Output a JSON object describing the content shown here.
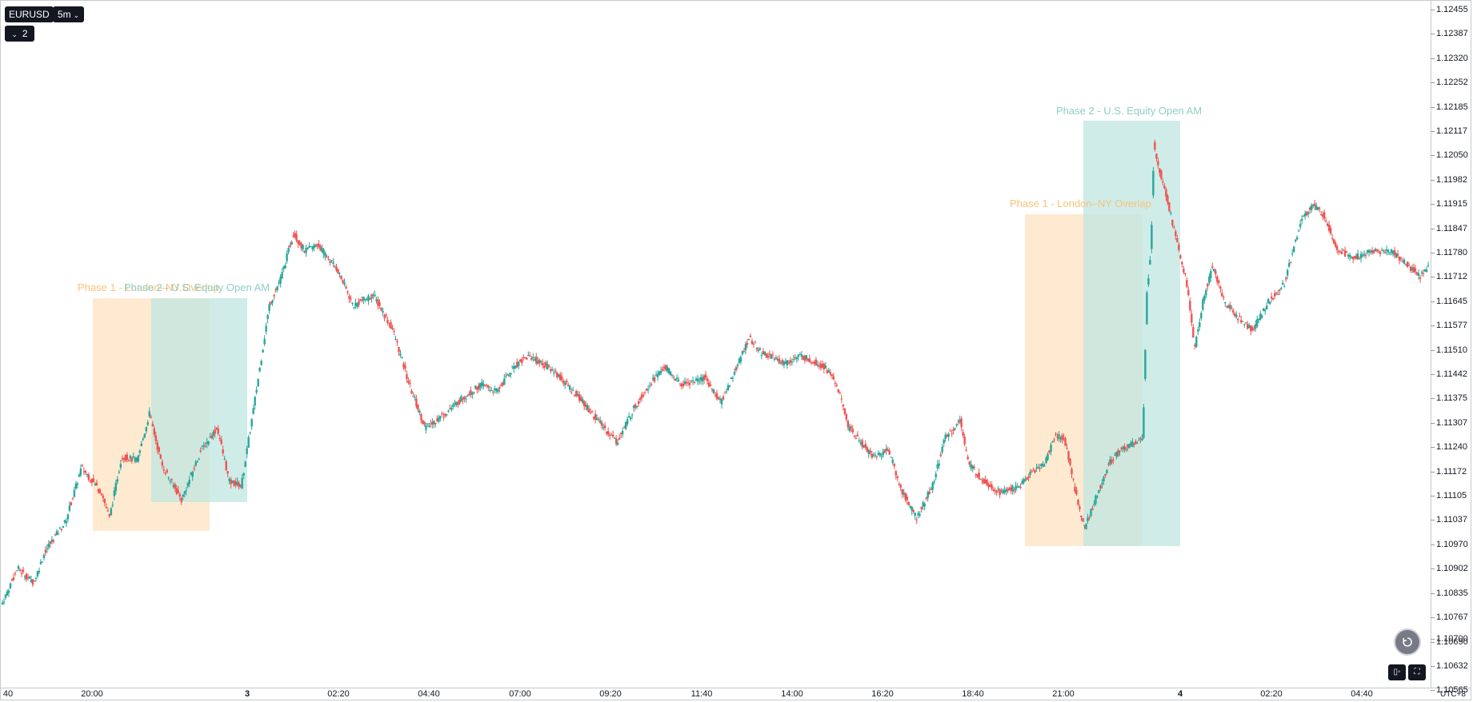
{
  "header": {
    "symbol": "EURUSD",
    "timeframe": "5m",
    "indicator_count": "2"
  },
  "colors": {
    "up": "#26a69a",
    "down": "#ef5350",
    "phase1_fill": "#fde3c1",
    "phase1_text": "#f8c37a",
    "phase2_fill": "#bfe6e0",
    "phase2_text": "#8fcfc6"
  },
  "zones": {
    "z1": "Phase 1 - London–NY Overlap",
    "z2": "Phase 2 - U.S. Equity Open AM",
    "z3": "Phase 1 - London–NY Overlap",
    "z4": "Phase 2 - U.S. Equity Open AM"
  },
  "price_scale": [
    "1.12455",
    "1.12387",
    "1.12320",
    "1.12252",
    "1.12185",
    "1.12117",
    "1.12050",
    "1.11982",
    "1.11915",
    "1.11847",
    "1.11780",
    "1.11712",
    "1.11645",
    "1.11577",
    "1.11510",
    "1.11442",
    "1.11375",
    "1.11307",
    "1.11240",
    "1.11172",
    "1.11105",
    "1.11037",
    "1.10970",
    "1.10902",
    "1.10835",
    "1.10767",
    "1.10700",
    "1.10690",
    "1.10632",
    "1.10565"
  ],
  "time_scale": [
    "40",
    "20:00",
    "3",
    "02:20",
    "04:40",
    "07:00",
    "09:20",
    "11:40",
    "14:00",
    "16:20",
    "18:40",
    "21:00",
    "4",
    "02:20",
    "04:40"
  ],
  "timezone": "UTC+8",
  "chart_data": {
    "type": "candlestick",
    "symbol": "EURUSD",
    "interval": "5m",
    "ylim": [
      1.1056,
      1.1246
    ],
    "anchors": [
      [
        0,
        1.1079
      ],
      [
        20,
        1.1089
      ],
      [
        40,
        1.1085
      ],
      [
        55,
        1.1094
      ],
      [
        80,
        1.1102
      ],
      [
        100,
        1.1117
      ],
      [
        125,
        1.111
      ],
      [
        135,
        1.1103
      ],
      [
        150,
        1.112
      ],
      [
        170,
        1.1119
      ],
      [
        185,
        1.1132
      ],
      [
        200,
        1.1118
      ],
      [
        225,
        1.1108
      ],
      [
        250,
        1.1122
      ],
      [
        270,
        1.1128
      ],
      [
        285,
        1.1113
      ],
      [
        300,
        1.1112
      ],
      [
        315,
        1.1133
      ],
      [
        335,
        1.1162
      ],
      [
        350,
        1.117
      ],
      [
        365,
        1.1182
      ],
      [
        380,
        1.1177
      ],
      [
        395,
        1.1179
      ],
      [
        420,
        1.1172
      ],
      [
        440,
        1.1162
      ],
      [
        465,
        1.1165
      ],
      [
        490,
        1.1155
      ],
      [
        510,
        1.114
      ],
      [
        530,
        1.1128
      ],
      [
        555,
        1.1132
      ],
      [
        575,
        1.1136
      ],
      [
        600,
        1.114
      ],
      [
        620,
        1.1138
      ],
      [
        640,
        1.1145
      ],
      [
        660,
        1.1148
      ],
      [
        690,
        1.1144
      ],
      [
        720,
        1.1137
      ],
      [
        750,
        1.1129
      ],
      [
        770,
        1.1124
      ],
      [
        790,
        1.1133
      ],
      [
        810,
        1.114
      ],
      [
        830,
        1.1145
      ],
      [
        850,
        1.114
      ],
      [
        880,
        1.1142
      ],
      [
        900,
        1.1135
      ],
      [
        920,
        1.1145
      ],
      [
        935,
        1.1153
      ],
      [
        950,
        1.1149
      ],
      [
        980,
        1.1146
      ],
      [
        1000,
        1.1148
      ],
      [
        1030,
        1.1145
      ],
      [
        1045,
        1.114
      ],
      [
        1060,
        1.1128
      ],
      [
        1075,
        1.1124
      ],
      [
        1090,
        1.112
      ],
      [
        1110,
        1.1122
      ],
      [
        1125,
        1.1111
      ],
      [
        1145,
        1.1103
      ],
      [
        1165,
        1.1112
      ],
      [
        1180,
        1.1125
      ],
      [
        1200,
        1.113
      ],
      [
        1210,
        1.1118
      ],
      [
        1230,
        1.1113
      ],
      [
        1250,
        1.111
      ],
      [
        1275,
        1.1112
      ],
      [
        1290,
        1.1116
      ],
      [
        1305,
        1.1118
      ],
      [
        1318,
        1.1126
      ],
      [
        1330,
        1.1125
      ],
      [
        1345,
        1.1109
      ],
      [
        1355,
        1.11
      ],
      [
        1370,
        1.1109
      ],
      [
        1385,
        1.1118
      ],
      [
        1400,
        1.1122
      ],
      [
        1418,
        1.1124
      ],
      [
        1428,
        1.1125
      ],
      [
        1433,
        1.1165
      ],
      [
        1438,
        1.1178
      ],
      [
        1442,
        1.1207
      ],
      [
        1448,
        1.12
      ],
      [
        1455,
        1.1195
      ],
      [
        1470,
        1.118
      ],
      [
        1483,
        1.1168
      ],
      [
        1493,
        1.115
      ],
      [
        1503,
        1.1163
      ],
      [
        1515,
        1.1173
      ],
      [
        1530,
        1.1163
      ],
      [
        1550,
        1.1158
      ],
      [
        1565,
        1.1155
      ],
      [
        1585,
        1.1163
      ],
      [
        1605,
        1.1168
      ],
      [
        1625,
        1.1185
      ],
      [
        1640,
        1.119
      ],
      [
        1655,
        1.1187
      ],
      [
        1670,
        1.1178
      ],
      [
        1690,
        1.1175
      ],
      [
        1715,
        1.1177
      ],
      [
        1740,
        1.1177
      ],
      [
        1760,
        1.1173
      ],
      [
        1775,
        1.117
      ],
      [
        1785,
        1.1173
      ]
    ]
  }
}
